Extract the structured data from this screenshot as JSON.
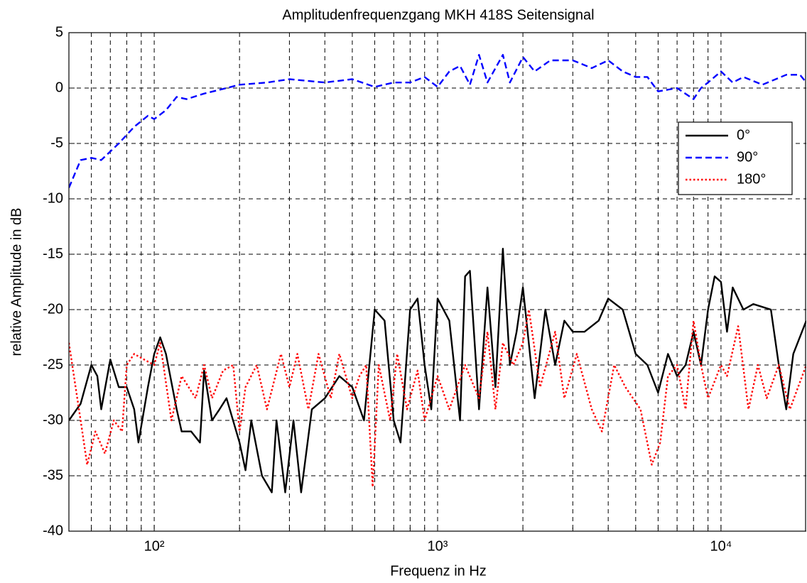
{
  "chart_data": {
    "type": "line",
    "title": "Amplitudenfrequenzgang MKH 418S Seitensignal",
    "xlabel": "Frequenz in Hz",
    "ylabel": "relative Amplitude in dB",
    "xscale": "log",
    "xlim": [
      50,
      20000
    ],
    "ylim": [
      -40,
      5
    ],
    "xticks": [
      {
        "value": 100,
        "label": "10²"
      },
      {
        "value": 1000,
        "label": "10³"
      },
      {
        "value": 10000,
        "label": "10⁴"
      }
    ],
    "xminorticks": [
      60,
      70,
      80,
      90,
      200,
      300,
      400,
      500,
      600,
      700,
      800,
      900,
      2000,
      3000,
      4000,
      5000,
      6000,
      7000,
      8000,
      9000
    ],
    "yticks": [
      5,
      0,
      -5,
      -10,
      -15,
      -20,
      -25,
      -30,
      -35,
      -40
    ],
    "grid": true,
    "legend": "northeast",
    "series": [
      {
        "name": "0°",
        "color": "#000000",
        "linestyle": "solid",
        "x": [
          50,
          55,
          60,
          63,
          65,
          70,
          75,
          80,
          85,
          88,
          95,
          100,
          105,
          110,
          120,
          125,
          135,
          145,
          150,
          160,
          170,
          180,
          200,
          210,
          220,
          240,
          260,
          270,
          290,
          310,
          330,
          360,
          400,
          450,
          500,
          550,
          600,
          650,
          700,
          740,
          800,
          850,
          900,
          950,
          1000,
          1100,
          1200,
          1250,
          1300,
          1400,
          1500,
          1600,
          1700,
          1800,
          1900,
          2000,
          2200,
          2400,
          2600,
          2800,
          3000,
          3300,
          3700,
          4000,
          4500,
          5000,
          5500,
          6000,
          6500,
          7000,
          7500,
          8000,
          8500,
          9000,
          9500,
          10000,
          10500,
          11000,
          12000,
          13000,
          15000,
          16000,
          17000,
          18000,
          20000
        ],
        "values": [
          -30,
          -28.5,
          -25,
          -26,
          -29,
          -24.5,
          -27,
          -27,
          -29,
          -32,
          -27,
          -24,
          -22.5,
          -24,
          -29,
          -31,
          -31,
          -32,
          -25.5,
          -30,
          -29,
          -28,
          -32,
          -34.5,
          -30,
          -35,
          -36.5,
          -30,
          -36.5,
          -30,
          -36.5,
          -29,
          -28,
          -26,
          -27,
          -30,
          -20,
          -21,
          -30,
          -32,
          -20,
          -19,
          -25,
          -29,
          -19,
          -21,
          -30,
          -17,
          -16.5,
          -29,
          -18,
          -27,
          -14.5,
          -25,
          -22,
          -18,
          -28,
          -20,
          -25,
          -21,
          -22,
          -22,
          -21,
          -19,
          -20,
          -24,
          -25,
          -27.5,
          -24,
          -26,
          -25,
          -22,
          -25,
          -20,
          -17,
          -17.5,
          -22,
          -18,
          -20,
          -19.5,
          -20,
          -25,
          -29,
          -24,
          -21
        ]
      },
      {
        "name": "90°",
        "color": "#0000ff",
        "linestyle": "dashed",
        "x": [
          50,
          55,
          60,
          65,
          75,
          85,
          95,
          100,
          110,
          120,
          130,
          150,
          180,
          200,
          250,
          300,
          400,
          500,
          600,
          700,
          800,
          900,
          1000,
          1100,
          1200,
          1300,
          1400,
          1500,
          1700,
          1800,
          2000,
          2200,
          2500,
          3000,
          3500,
          4000,
          4500,
          5000,
          5500,
          6000,
          7000,
          8000,
          8500,
          9000,
          10000,
          11000,
          12000,
          14000,
          17000,
          19000,
          20000
        ],
        "values": [
          -9,
          -6.5,
          -6.3,
          -6.5,
          -5,
          -3.5,
          -2.5,
          -2.8,
          -2,
          -0.8,
          -1,
          -0.5,
          0,
          0.3,
          0.5,
          0.8,
          0.5,
          0.8,
          0.1,
          0.5,
          0.5,
          1,
          0.1,
          1.5,
          2,
          0.3,
          3,
          0.5,
          3,
          0.5,
          2.8,
          1.5,
          2.5,
          2.5,
          1.8,
          2.5,
          1.5,
          1,
          1,
          -0.3,
          0,
          -1,
          0,
          0.5,
          1.5,
          0.5,
          1,
          0.3,
          1.2,
          1.2,
          0.5
        ]
      },
      {
        "name": "180°",
        "color": "#ff0000",
        "linestyle": "dotted",
        "x": [
          50,
          55,
          58,
          62,
          67,
          72,
          77,
          80,
          85,
          92,
          100,
          105,
          115,
          125,
          140,
          150,
          160,
          175,
          190,
          200,
          210,
          230,
          250,
          280,
          300,
          320,
          350,
          380,
          420,
          450,
          500,
          530,
          560,
          590,
          620,
          680,
          720,
          780,
          850,
          900,
          1000,
          1100,
          1250,
          1400,
          1500,
          1600,
          1700,
          1850,
          2000,
          2100,
          2300,
          2600,
          2800,
          3100,
          3500,
          3800,
          4200,
          4600,
          5200,
          5700,
          6100,
          6500,
          7000,
          7500,
          8000,
          8500,
          9000,
          10000,
          10500,
          11500,
          12500,
          13500,
          14500,
          16000,
          17500,
          20000
        ],
        "values": [
          -23,
          -30,
          -34,
          -31,
          -33,
          -30,
          -31,
          -25,
          -24,
          -24.5,
          -25,
          -23,
          -30,
          -26,
          -28,
          -25,
          -28,
          -25.5,
          -25,
          -31,
          -27,
          -25,
          -29,
          -24,
          -27,
          -24,
          -29,
          -24,
          -28,
          -24,
          -28,
          -26,
          -25,
          -36,
          -25,
          -30,
          -24,
          -29,
          -25.5,
          -30,
          -26,
          -29,
          -25,
          -28,
          -22,
          -29,
          -23,
          -25,
          -23,
          -20,
          -27,
          -22,
          -28,
          -24,
          -29,
          -31,
          -25,
          -27,
          -29,
          -34,
          -32,
          -26,
          -25,
          -29,
          -21,
          -25,
          -28,
          -25,
          -26,
          -21.5,
          -29,
          -25,
          -28,
          -25,
          -29,
          -25
        ]
      }
    ]
  }
}
